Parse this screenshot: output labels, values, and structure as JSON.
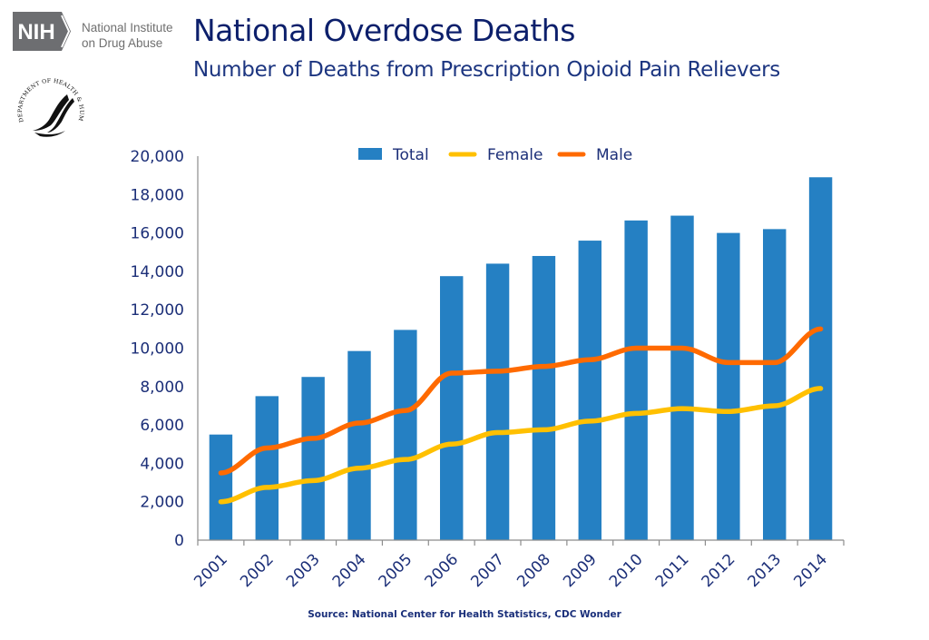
{
  "header": {
    "org_logo_text": "NIH",
    "org_name_line1": "National Institute",
    "org_name_line2": "on Drug Abuse",
    "seal_text": "DEPARTMENT OF HEALTH & HUMAN SERVICES · USA",
    "title": "National Overdose Deaths",
    "subtitle": "Number of Deaths from Prescription Opioid Pain Relievers"
  },
  "footer": {
    "source": "Source: National Center for Health Statistics, CDC Wonder"
  },
  "colors": {
    "total": "#2580c3",
    "female": "#ffc000",
    "male": "#ff6a00",
    "text": "#1c2f78",
    "axis": "#8c8c8c"
  },
  "chart_data": {
    "type": "bar",
    "title": "National Overdose Deaths",
    "subtitle": "Number of Deaths from Prescription Opioid Pain Relievers",
    "xlabel": "",
    "ylabel": "",
    "categories": [
      "2001",
      "2002",
      "2003",
      "2004",
      "2005",
      "2006",
      "2007",
      "2008",
      "2009",
      "2010",
      "2011",
      "2012",
      "2013",
      "2014"
    ],
    "ylim": [
      0,
      20000
    ],
    "yticks": [
      0,
      2000,
      4000,
      6000,
      8000,
      10000,
      12000,
      14000,
      16000,
      18000,
      20000
    ],
    "ytick_labels": [
      "0",
      "2,000",
      "4,000",
      "6,000",
      "8,000",
      "10,000",
      "12,000",
      "14,000",
      "16,000",
      "18,000",
      "20,000"
    ],
    "grid": false,
    "legend_position": "top-center",
    "series": [
      {
        "name": "Total",
        "type": "bar",
        "values": [
          5500,
          7500,
          8500,
          9850,
          10950,
          13750,
          14400,
          14800,
          15600,
          16650,
          16900,
          16000,
          16200,
          18900
        ]
      },
      {
        "name": "Female",
        "type": "line",
        "values": [
          2000,
          2750,
          3100,
          3750,
          4200,
          5000,
          5600,
          5750,
          6200,
          6600,
          6850,
          6700,
          7000,
          7900
        ]
      },
      {
        "name": "Male",
        "type": "line",
        "values": [
          3500,
          4800,
          5300,
          6100,
          6750,
          8700,
          8800,
          9050,
          9400,
          10000,
          10000,
          9250,
          9250,
          11000
        ]
      }
    ],
    "source": "Source: National Center for Health Statistics, CDC Wonder"
  }
}
